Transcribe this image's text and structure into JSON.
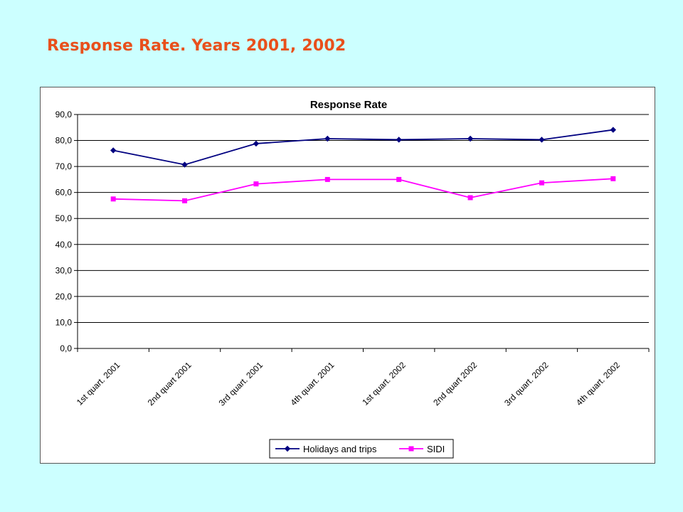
{
  "slide": {
    "title": "Response Rate. Years 2001, 2002"
  },
  "colors": {
    "background": "#CCFFFF",
    "title": "#E8501C",
    "series_holidays": "#000080",
    "series_sidi": "#FF00FF"
  },
  "chart_data": {
    "type": "line",
    "title": "Response Rate",
    "xlabel": "",
    "ylabel": "",
    "categories": [
      "1st quart. 2001",
      "2nd quart 2001",
      "3rd quart. 2001",
      "4th quart. 2001",
      "1st quart. 2002",
      "2nd quart 2002",
      "3rd quart. 2002",
      "4th quart. 2002"
    ],
    "y_ticks": [
      "0,0",
      "10,0",
      "20,0",
      "30,0",
      "40,0",
      "50,0",
      "60,0",
      "70,0",
      "80,0",
      "90,0"
    ],
    "ylim": [
      0,
      90
    ],
    "grid": true,
    "legend_position": "bottom",
    "series": [
      {
        "name": "Holidays and trips",
        "marker": "diamond",
        "color": "#000080",
        "values": [
          76.2,
          70.7,
          78.8,
          80.7,
          80.3,
          80.7,
          80.3,
          84.1
        ]
      },
      {
        "name": "SIDI",
        "marker": "square",
        "color": "#FF00FF",
        "values": [
          57.5,
          56.8,
          63.3,
          65.0,
          65.0,
          58.0,
          63.7,
          65.3
        ]
      }
    ]
  }
}
